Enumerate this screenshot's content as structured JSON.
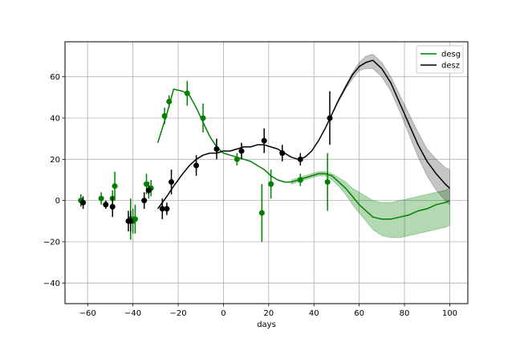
{
  "chart_data": {
    "type": "line",
    "xlabel": "days",
    "ylabel": "",
    "title": "",
    "xlim": [
      -70,
      108
    ],
    "ylim": [
      -50,
      77
    ],
    "xticks": [
      -60,
      -40,
      -20,
      0,
      20,
      40,
      60,
      80,
      100
    ],
    "yticks": [
      -40,
      -20,
      0,
      20,
      40,
      60
    ],
    "grid": true,
    "legend_position": "top-right",
    "series": [
      {
        "name": "desg",
        "color": "#008000",
        "band_color": "#008000",
        "line": {
          "x": [
            -29,
            -25,
            -22,
            -18,
            -15,
            -12,
            -9,
            -6,
            -3,
            0,
            3,
            6,
            9,
            12,
            15,
            18,
            21,
            24,
            27,
            30,
            33,
            36,
            39,
            42,
            45,
            48,
            51,
            54,
            57,
            60,
            63,
            66,
            70,
            74,
            78,
            82,
            86,
            90,
            94,
            98,
            100
          ],
          "y": [
            28,
            42,
            54,
            53,
            51,
            45,
            38,
            31,
            26,
            23,
            22,
            21,
            20,
            19,
            17,
            15,
            12,
            10,
            9,
            9,
            10,
            11,
            12,
            13,
            13,
            12,
            9,
            6,
            2,
            -2,
            -5,
            -8,
            -9,
            -9,
            -8,
            -7,
            -5,
            -4,
            -2,
            -1,
            0
          ]
        },
        "band": {
          "x": [
            30,
            33,
            36,
            39,
            42,
            45,
            48,
            51,
            54,
            57,
            60,
            63,
            66,
            70,
            74,
            78,
            82,
            86,
            90,
            94,
            98,
            100
          ],
          "upper": [
            10,
            11,
            12,
            13,
            14,
            14,
            13,
            11,
            9,
            6,
            4,
            2,
            0,
            -1,
            -1,
            0,
            1,
            2,
            3,
            4,
            5,
            6
          ],
          "lower": [
            8,
            9,
            10,
            11,
            12,
            12,
            10,
            7,
            3,
            -2,
            -6,
            -10,
            -14,
            -17,
            -18,
            -18,
            -17,
            -16,
            -15,
            -14,
            -13,
            -12
          ]
        },
        "points": [
          {
            "x": -63,
            "y": 0,
            "err": 3
          },
          {
            "x": -54,
            "y": 1,
            "err": 3
          },
          {
            "x": -49,
            "y": 1,
            "err": 4
          },
          {
            "x": -48,
            "y": 7,
            "err": 7
          },
          {
            "x": -41,
            "y": -9,
            "err": 10
          },
          {
            "x": -40,
            "y": -10,
            "err": 6
          },
          {
            "x": -39,
            "y": -9,
            "err": 7
          },
          {
            "x": -34,
            "y": 8,
            "err": 5
          },
          {
            "x": -33,
            "y": 5,
            "err": 4
          },
          {
            "x": -32,
            "y": 6,
            "err": 4
          },
          {
            "x": -26,
            "y": 41,
            "err": 4
          },
          {
            "x": -24,
            "y": 48,
            "err": 3
          },
          {
            "x": -16,
            "y": 52,
            "err": 6
          },
          {
            "x": -9,
            "y": 40,
            "err": 7
          },
          {
            "x": 6,
            "y": 20,
            "err": 3
          },
          {
            "x": 17,
            "y": -6,
            "err": 14
          },
          {
            "x": 21,
            "y": 8,
            "err": 7
          },
          {
            "x": 34,
            "y": 10,
            "err": 3
          },
          {
            "x": 46,
            "y": 9,
            "err": 14
          }
        ]
      },
      {
        "name": "desz",
        "color": "#000000",
        "band_color": "#404040",
        "line": {
          "x": [
            -29,
            -25,
            -22,
            -18,
            -15,
            -12,
            -9,
            -6,
            -3,
            0,
            3,
            6,
            9,
            12,
            15,
            18,
            21,
            24,
            27,
            30,
            33,
            36,
            39,
            42,
            45,
            48,
            51,
            54,
            57,
            60,
            63,
            66,
            70,
            74,
            78,
            82,
            86,
            90,
            94,
            98,
            100
          ],
          "y": [
            -4,
            2,
            7,
            13,
            17,
            20,
            22,
            23,
            23,
            24,
            24,
            25,
            26,
            26,
            27,
            27,
            26,
            25,
            23,
            21,
            20,
            21,
            24,
            29,
            35,
            42,
            49,
            55,
            61,
            65,
            67,
            68,
            64,
            57,
            47,
            37,
            27,
            19,
            13,
            8,
            6
          ]
        },
        "band": {
          "x": [
            33,
            36,
            39,
            42,
            45,
            48,
            51,
            54,
            57,
            60,
            63,
            66,
            70,
            74,
            78,
            82,
            86,
            90,
            94,
            98,
            100
          ],
          "upper": [
            20,
            21,
            24,
            29,
            35,
            42,
            49,
            56,
            62,
            67,
            70,
            71,
            67,
            60,
            51,
            42,
            33,
            25,
            20,
            16,
            15
          ],
          "lower": [
            20,
            21,
            24,
            29,
            35,
            42,
            48,
            54,
            59,
            63,
            64,
            64,
            60,
            53,
            43,
            32,
            21,
            12,
            5,
            0,
            -2
          ]
        },
        "points": [
          {
            "x": -62,
            "y": -1,
            "err": 3
          },
          {
            "x": -52,
            "y": -2,
            "err": 2
          },
          {
            "x": -49,
            "y": -3,
            "err": 5
          },
          {
            "x": -42,
            "y": -10,
            "err": 5
          },
          {
            "x": -41,
            "y": -10,
            "err": 5
          },
          {
            "x": -35,
            "y": 0,
            "err": 4
          },
          {
            "x": -33,
            "y": 5,
            "err": 2
          },
          {
            "x": -27,
            "y": -4,
            "err": 5
          },
          {
            "x": -25,
            "y": -4,
            "err": 3
          },
          {
            "x": -23,
            "y": 9,
            "err": 6
          },
          {
            "x": -12,
            "y": 17,
            "err": 5
          },
          {
            "x": -3,
            "y": 25,
            "err": 5
          },
          {
            "x": 8,
            "y": 24,
            "err": 4
          },
          {
            "x": 18,
            "y": 29,
            "err": 6
          },
          {
            "x": 26,
            "y": 23,
            "err": 4
          },
          {
            "x": 34,
            "y": 20,
            "err": 3
          },
          {
            "x": 47,
            "y": 40,
            "err": 13
          }
        ]
      }
    ]
  }
}
